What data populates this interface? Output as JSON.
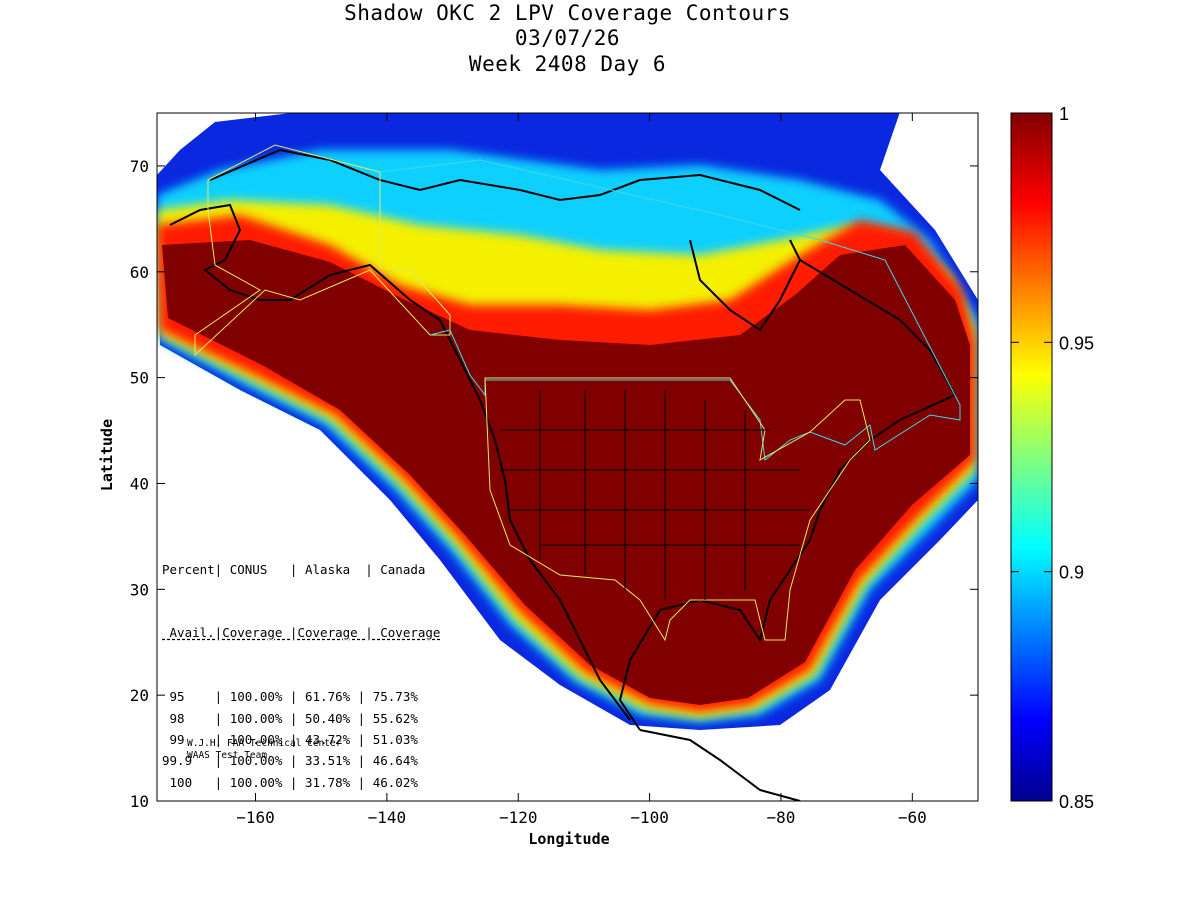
{
  "title": {
    "line1": "Shadow OKC 2 LPV Coverage Contours",
    "line2": "03/07/26",
    "line3": "Week 2408 Day 6"
  },
  "axes": {
    "xlabel": "Longitude",
    "ylabel": "Latitude",
    "xlim": [
      -175,
      -50
    ],
    "ylim": [
      10,
      75
    ],
    "xticks": [
      -160,
      -140,
      -120,
      -100,
      -80,
      -60
    ],
    "yticks": [
      10,
      20,
      30,
      40,
      50,
      60,
      70
    ]
  },
  "colorbar": {
    "min": 0.85,
    "max": 1,
    "ticks": [
      "1",
      "0.95",
      "0.9",
      "0.85"
    ],
    "colormap": "jet"
  },
  "coverage_table": {
    "header1": "Percent| CONUS   | Alaska  | Canada",
    "header2": " Avail.|Coverage |Coverage | Coverage",
    "rows": [
      {
        "percent": "95",
        "conus": "100.00%",
        "alaska": "61.76%",
        "canada": "75.73%"
      },
      {
        "percent": "98",
        "conus": "100.00%",
        "alaska": "50.40%",
        "canada": "55.62%"
      },
      {
        "percent": "99",
        "conus": "100.00%",
        "alaska": "43.72%",
        "canada": "51.03%"
      },
      {
        "percent": "99.9",
        "conus": "100.00%",
        "alaska": "33.51%",
        "canada": "46.64%"
      },
      {
        "percent": "100",
        "conus": "100.00%",
        "alaska": "31.78%",
        "canada": "46.02%"
      }
    ]
  },
  "credit": {
    "line1": "W.J.H. FAA Technical Center",
    "line2": "WAAS Test Team"
  },
  "colors": {
    "high": "#800000",
    "low": "#000080"
  }
}
